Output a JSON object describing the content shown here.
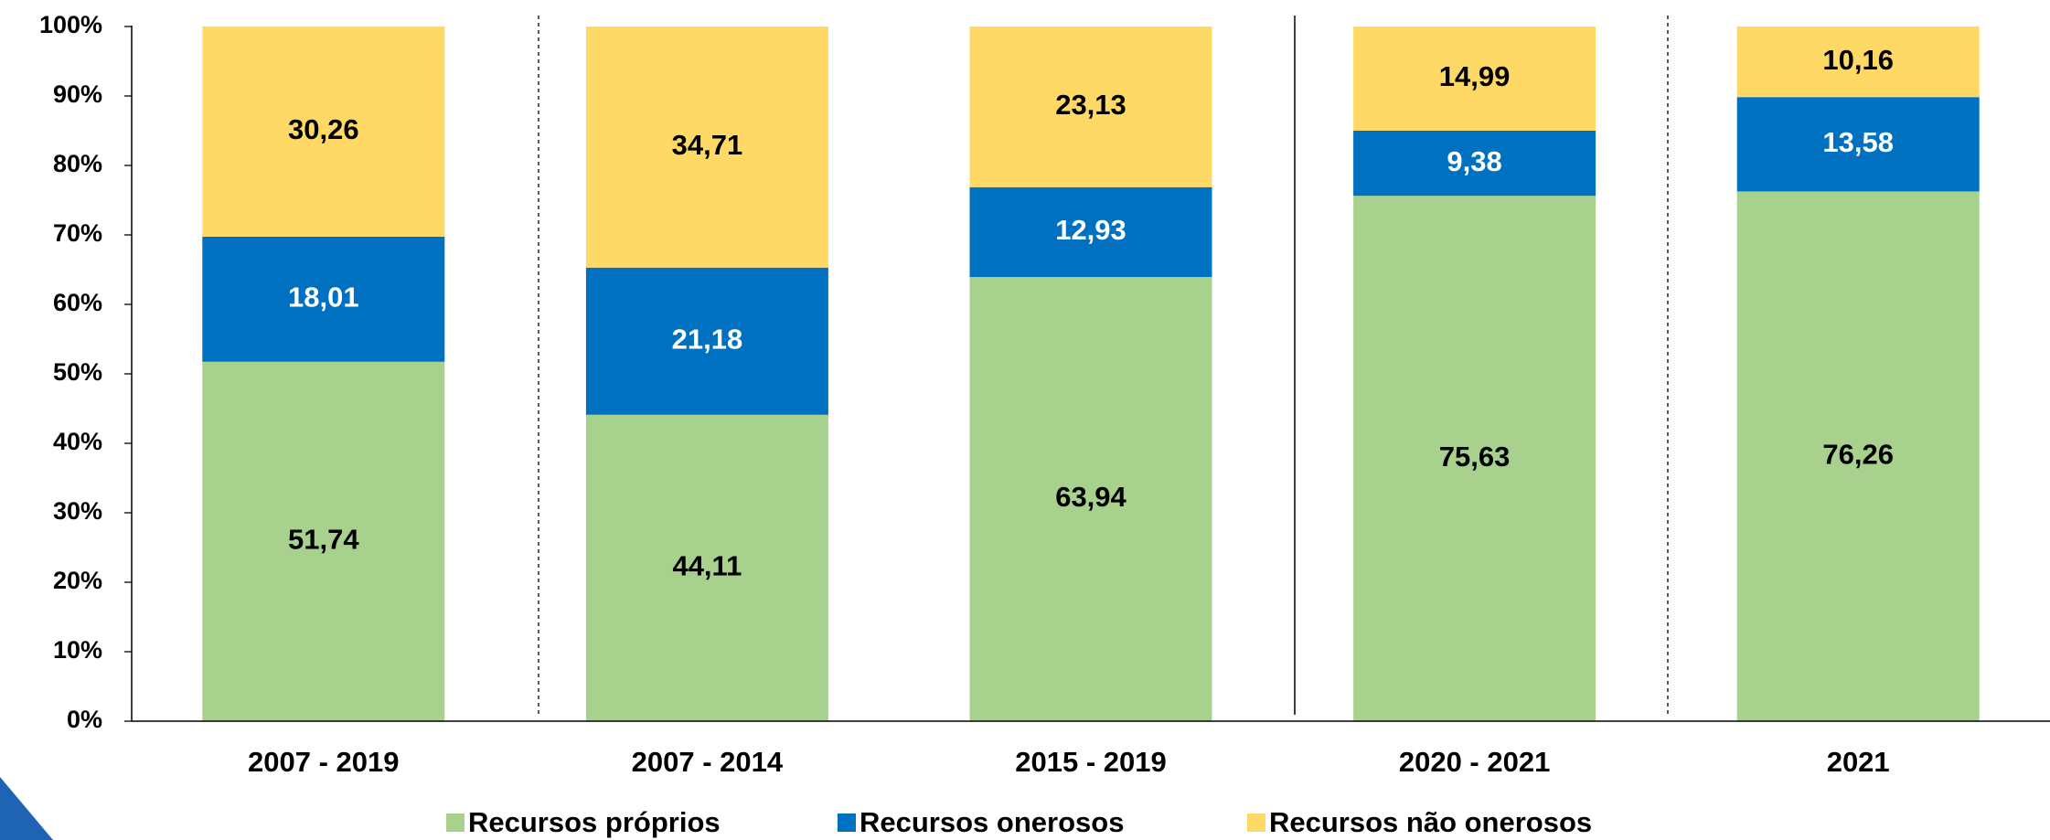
{
  "chart_data": {
    "type": "stacked_bar_100",
    "categories": [
      "2007 - 2019",
      "2007 - 2014",
      "2015 - 2019",
      "2020 - 2021",
      "2021"
    ],
    "series": [
      {
        "name": "Recursos próprios",
        "color": "#a9d18e",
        "label_color": "#000000",
        "values": [
          51.74,
          44.11,
          63.94,
          75.63,
          76.26
        ],
        "value_labels": [
          "51,74",
          "44,11",
          "63,94",
          "75,63",
          "76,26"
        ]
      },
      {
        "name": "Recursos onerosos",
        "color": "#0070c0",
        "label_color": "#ffffff",
        "values": [
          18.01,
          21.18,
          12.93,
          9.38,
          13.58
        ],
        "value_labels": [
          "18,01",
          "21,18",
          "12,93",
          "9,38",
          "13,58"
        ]
      },
      {
        "name": "Recursos não onerosos",
        "color": "#ffd966",
        "label_color": "#000000",
        "values": [
          30.26,
          34.71,
          23.13,
          14.99,
          10.16
        ],
        "value_labels": [
          "30,26",
          "34,71",
          "23,13",
          "14,99",
          "10,16"
        ]
      }
    ],
    "ylim": [
      0,
      100
    ],
    "yticks": [
      {
        "value": 0,
        "label": "0%"
      },
      {
        "value": 10,
        "label": "10%"
      },
      {
        "value": 20,
        "label": "20%"
      },
      {
        "value": 30,
        "label": "30%"
      },
      {
        "value": 40,
        "label": "40%"
      },
      {
        "value": 50,
        "label": "50%"
      },
      {
        "value": 60,
        "label": "60%"
      },
      {
        "value": 70,
        "label": "70%"
      },
      {
        "value": 80,
        "label": "80%"
      },
      {
        "value": 90,
        "label": "90%"
      },
      {
        "value": 100,
        "label": "100%"
      }
    ],
    "legend": "bottom"
  }
}
